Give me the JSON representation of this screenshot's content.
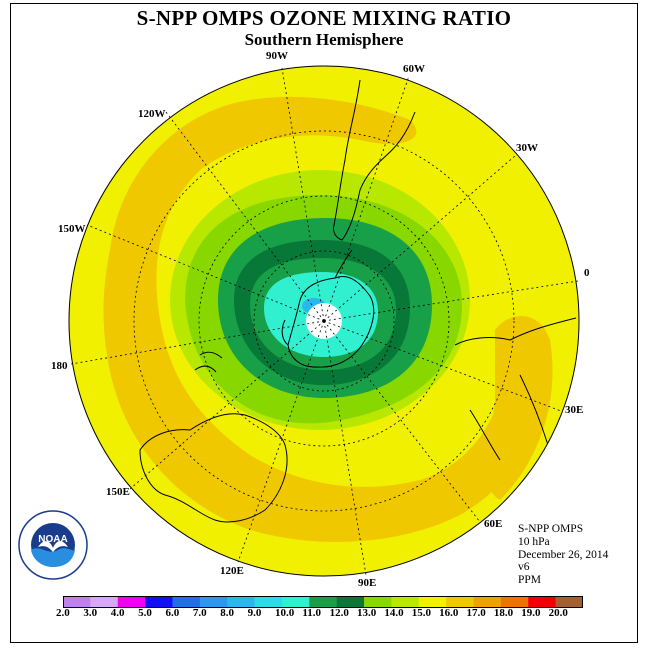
{
  "title": "S-NPP OMPS OZONE MIXING RATIO",
  "subtitle": "Southern Hemisphere",
  "longitude_labels": {
    "lon_90w": "90W",
    "lon_60w": "60W",
    "lon_120w": "120W",
    "lon_30w": "30W",
    "lon_150w": "150W",
    "lon_0": "0",
    "lon_180": "180",
    "lon_30e": "30E",
    "lon_150e": "150E",
    "lon_60e": "60E",
    "lon_120e": "120E",
    "lon_90e": "90E"
  },
  "info": {
    "instrument": "S-NPP OMPS",
    "pressure": "10 hPa",
    "date": "December 26, 2014",
    "version": "v6",
    "units": "PPM"
  },
  "logo_text": "NOAA",
  "colorbar": {
    "ticks": [
      "2.0",
      "3.0",
      "4.0",
      "5.0",
      "6.0",
      "7.0",
      "8.0",
      "9.0",
      "10.0",
      "11.0",
      "12.0",
      "13.0",
      "14.0",
      "15.0",
      "16.0",
      "17.0",
      "18.0",
      "19.0",
      "20.0"
    ],
    "colors": [
      "#c080f0",
      "#d8a8f8",
      "#f000f0",
      "#1010f0",
      "#1e70e8",
      "#2898f0",
      "#28b8f0",
      "#30d8e8",
      "#30f0d0",
      "#18a048",
      "#087838",
      "#88d800",
      "#b8e800",
      "#f0f000",
      "#f0c800",
      "#f0a000",
      "#f07000",
      "#f00000",
      "#a06030"
    ]
  },
  "legend_values": {
    "min": 2.0,
    "max": 20.0,
    "step": 1.0
  }
}
